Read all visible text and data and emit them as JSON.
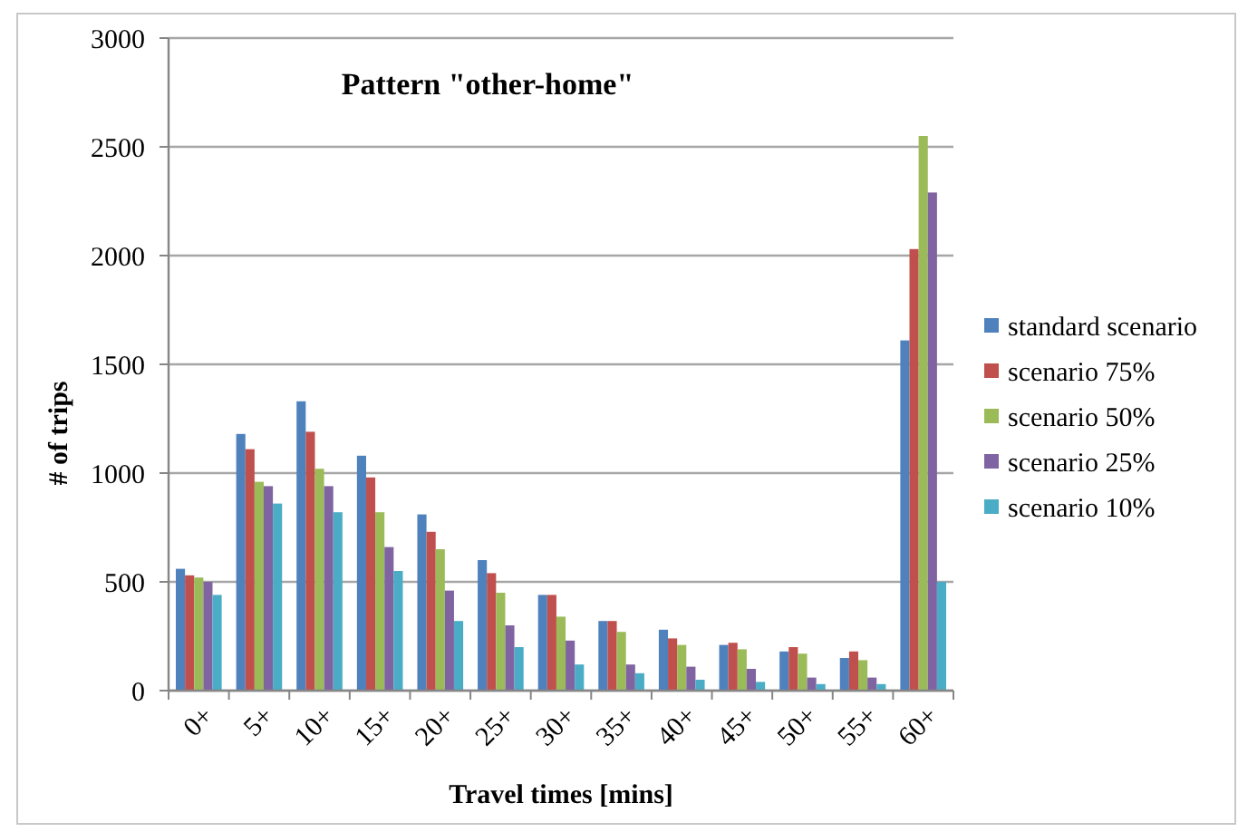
{
  "chart_data": {
    "type": "bar",
    "title": "Pattern \"other-home\"",
    "xlabel": "Travel times [mins]",
    "ylabel": "# of trips",
    "categories": [
      "0+",
      "5+",
      "10+",
      "15+",
      "20+",
      "25+",
      "30+",
      "35+",
      "40+",
      "45+",
      "50+",
      "55+",
      "60+"
    ],
    "series": [
      {
        "name": "standard scenario",
        "color": "#4f81bd",
        "values": [
          560,
          1180,
          1330,
          1080,
          810,
          600,
          440,
          320,
          280,
          210,
          180,
          150,
          1610
        ]
      },
      {
        "name": "scenario 75%",
        "color": "#c0504d",
        "values": [
          530,
          1110,
          1190,
          980,
          730,
          540,
          440,
          320,
          240,
          220,
          200,
          180,
          2030
        ]
      },
      {
        "name": "scenario 50%",
        "color": "#9bbb59",
        "values": [
          520,
          960,
          1020,
          820,
          650,
          450,
          340,
          270,
          210,
          190,
          170,
          140,
          2550
        ]
      },
      {
        "name": "scenario 25%",
        "color": "#8064a2",
        "values": [
          500,
          940,
          940,
          660,
          460,
          300,
          230,
          120,
          110,
          100,
          60,
          60,
          2290
        ]
      },
      {
        "name": "scenario 10%",
        "color": "#4bacc6",
        "values": [
          440,
          860,
          820,
          550,
          320,
          200,
          120,
          80,
          50,
          40,
          30,
          30,
          500
        ]
      }
    ],
    "ylim": [
      0,
      3000
    ],
    "yticks": [
      0,
      500,
      1000,
      1500,
      2000,
      2500,
      3000
    ],
    "grid": "y",
    "legend": "right"
  }
}
